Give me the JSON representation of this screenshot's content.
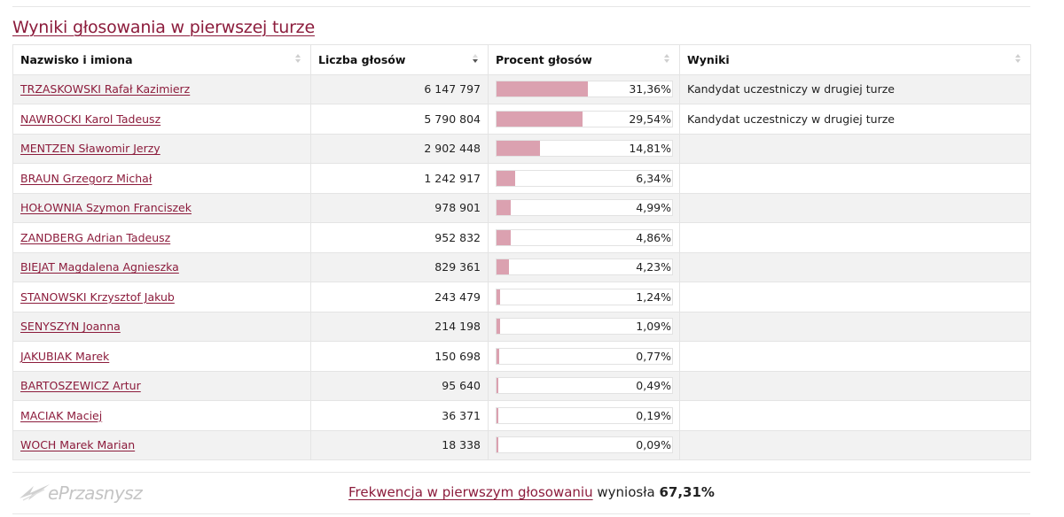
{
  "section": {
    "title": "Wyniki głosowania w pierwszej turze"
  },
  "table": {
    "headers": {
      "name": "Nazwisko i imiona",
      "votes": "Liczba głosów",
      "percent": "Procent głosów",
      "result": "Wyniki"
    },
    "rows": [
      {
        "name": "TRZASKOWSKI Rafał Kazimierz",
        "votes": "6 147 797",
        "percent": "31,36%",
        "share": 0.3136,
        "result": "Kandydat uczestniczy w drugiej turze"
      },
      {
        "name": "NAWROCKI Karol Tadeusz",
        "votes": "5 790 804",
        "percent": "29,54%",
        "share": 0.2954,
        "result": "Kandydat uczestniczy w drugiej turze"
      },
      {
        "name": "MENTZEN Sławomir Jerzy",
        "votes": "2 902 448",
        "percent": "14,81%",
        "share": 0.1481,
        "result": ""
      },
      {
        "name": "BRAUN Grzegorz Michał",
        "votes": "1 242 917",
        "percent": "6,34%",
        "share": 0.0634,
        "result": ""
      },
      {
        "name": "HOŁOWNIA Szymon Franciszek",
        "votes": "978 901",
        "percent": "4,99%",
        "share": 0.0499,
        "result": ""
      },
      {
        "name": "ZANDBERG Adrian Tadeusz",
        "votes": "952 832",
        "percent": "4,86%",
        "share": 0.0486,
        "result": ""
      },
      {
        "name": "BIEJAT Magdalena Agnieszka",
        "votes": "829 361",
        "percent": "4,23%",
        "share": 0.0423,
        "result": ""
      },
      {
        "name": "STANOWSKI Krzysztof Jakub",
        "votes": "243 479",
        "percent": "1,24%",
        "share": 0.0124,
        "result": ""
      },
      {
        "name": "SENYSZYN Joanna",
        "votes": "214 198",
        "percent": "1,09%",
        "share": 0.0109,
        "result": ""
      },
      {
        "name": "JAKUBIAK Marek",
        "votes": "150 698",
        "percent": "0,77%",
        "share": 0.0077,
        "result": ""
      },
      {
        "name": "BARTOSZEWICZ Artur",
        "votes": "95 640",
        "percent": "0,49%",
        "share": 0.0049,
        "result": ""
      },
      {
        "name": "MACIAK Maciej",
        "votes": "36 371",
        "percent": "0,19%",
        "share": 0.0019,
        "result": ""
      },
      {
        "name": "WOCH Marek Marian",
        "votes": "18 338",
        "percent": "0,09%",
        "share": 0.0009,
        "result": ""
      }
    ]
  },
  "footer": {
    "logo_text": "ePrzasnysz",
    "turnout_link": "Frekwencja w pierwszym głosowaniu",
    "turnout_text": "wyniosła",
    "turnout_value": "67,31%"
  },
  "colors": {
    "accent": "#8c1c3c",
    "bar": "#dba1b0"
  }
}
